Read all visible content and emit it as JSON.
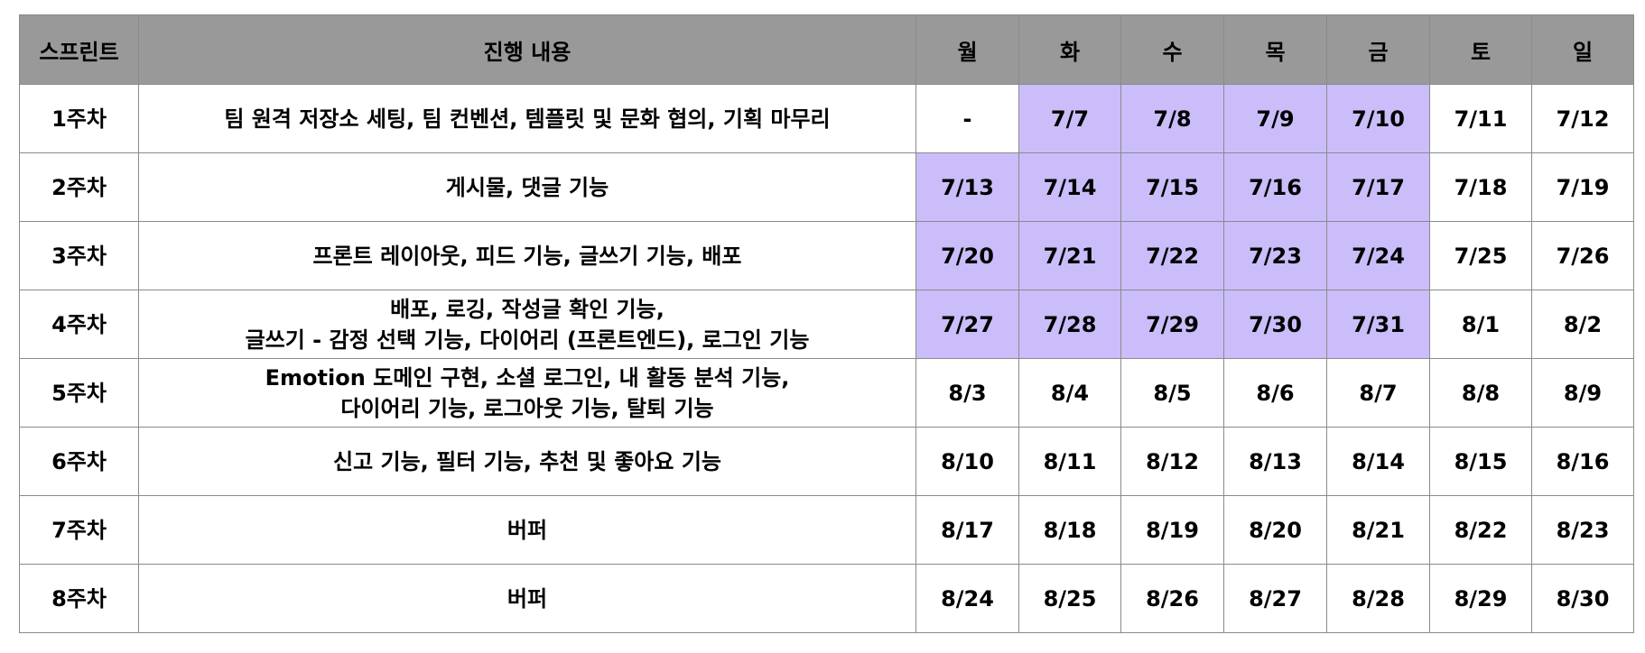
{
  "colors": {
    "header_bg": "#999999",
    "highlight": "#cbbdf9",
    "border": "#8a8a8a"
  },
  "headers": [
    "스프린트",
    "진행 내용",
    "월",
    "화",
    "수",
    "목",
    "금",
    "토",
    "일"
  ],
  "rows": [
    {
      "sprint": "1주차",
      "content": [
        "팀 원격 저장소 세팅, 팀 컨벤션, 템플릿 및 문화 협의, 기획 마무리"
      ],
      "dates": [
        "-",
        "7/7",
        "7/8",
        "7/9",
        "7/10",
        "7/11",
        "7/12"
      ],
      "highlighted": [
        false,
        true,
        true,
        true,
        true,
        false,
        false
      ]
    },
    {
      "sprint": "2주차",
      "content": [
        "게시물, 댓글 기능"
      ],
      "dates": [
        "7/13",
        "7/14",
        "7/15",
        "7/16",
        "7/17",
        "7/18",
        "7/19"
      ],
      "highlighted": [
        true,
        true,
        true,
        true,
        true,
        false,
        false
      ]
    },
    {
      "sprint": "3주차",
      "content": [
        "프론트 레이아웃, 피드 기능, 글쓰기 기능, 배포"
      ],
      "dates": [
        "7/20",
        "7/21",
        "7/22",
        "7/23",
        "7/24",
        "7/25",
        "7/26"
      ],
      "highlighted": [
        true,
        true,
        true,
        true,
        true,
        false,
        false
      ]
    },
    {
      "sprint": "4주차",
      "content": [
        "배포, 로깅, 작성글 확인 기능,",
        "글쓰기 - 감정 선택 기능, 다이어리 (프론트엔드), 로그인 기능"
      ],
      "dates": [
        "7/27",
        "7/28",
        "7/29",
        "7/30",
        "7/31",
        "8/1",
        "8/2"
      ],
      "highlighted": [
        true,
        true,
        true,
        true,
        true,
        false,
        false
      ]
    },
    {
      "sprint": "5주차",
      "content": [
        "Emotion 도메인 구현, 소셜 로그인, 내 활동 분석 기능,",
        "다이어리 기능, 로그아웃 기능, 탈퇴 기능"
      ],
      "dates": [
        "8/3",
        "8/4",
        "8/5",
        "8/6",
        "8/7",
        "8/8",
        "8/9"
      ],
      "highlighted": [
        false,
        false,
        false,
        false,
        false,
        false,
        false
      ]
    },
    {
      "sprint": "6주차",
      "content": [
        "신고 기능, 필터 기능, 추천 및 좋아요 기능"
      ],
      "dates": [
        "8/10",
        "8/11",
        "8/12",
        "8/13",
        "8/14",
        "8/15",
        "8/16"
      ],
      "highlighted": [
        false,
        false,
        false,
        false,
        false,
        false,
        false
      ]
    },
    {
      "sprint": "7주차",
      "content": [
        "버퍼"
      ],
      "dates": [
        "8/17",
        "8/18",
        "8/19",
        "8/20",
        "8/21",
        "8/22",
        "8/23"
      ],
      "highlighted": [
        false,
        false,
        false,
        false,
        false,
        false,
        false
      ]
    },
    {
      "sprint": "8주차",
      "content": [
        "버퍼"
      ],
      "dates": [
        "8/24",
        "8/25",
        "8/26",
        "8/27",
        "8/28",
        "8/29",
        "8/30"
      ],
      "highlighted": [
        false,
        false,
        false,
        false,
        false,
        false,
        false
      ]
    }
  ]
}
